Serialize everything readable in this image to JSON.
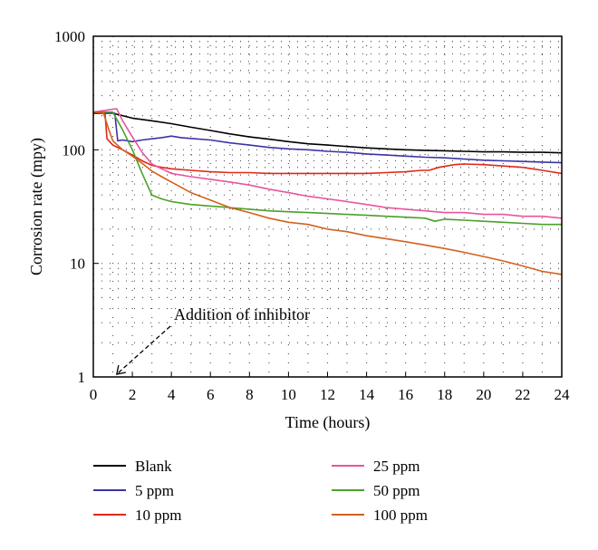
{
  "chart_data": {
    "type": "line",
    "xlabel": "Time (hours)",
    "ylabel": "Corrosion rate (mpy)",
    "xlim": [
      0,
      24
    ],
    "ylim": [
      1,
      1000
    ],
    "yscale": "log",
    "xticks": [
      "0",
      "2",
      "4",
      "6",
      "8",
      "10",
      "12",
      "14",
      "16",
      "18",
      "20",
      "22",
      "24"
    ],
    "yticks": [
      "1",
      "10",
      "100",
      "1000"
    ],
    "grid": "dotted",
    "legend_position": "bottom",
    "annotation": {
      "text": "Addition of inhibitor",
      "x": 1.2,
      "y": 1
    },
    "series": [
      {
        "name": "Blank",
        "color": "#000000",
        "points": [
          [
            0,
            210
          ],
          [
            1,
            210
          ],
          [
            2,
            190
          ],
          [
            3,
            180
          ],
          [
            4,
            170
          ],
          [
            5,
            158
          ],
          [
            6,
            148
          ],
          [
            7,
            138
          ],
          [
            8,
            130
          ],
          [
            9,
            124
          ],
          [
            10,
            118
          ],
          [
            11,
            113
          ],
          [
            12,
            110
          ],
          [
            13,
            107
          ],
          [
            14,
            104
          ],
          [
            15,
            102
          ],
          [
            16,
            100
          ],
          [
            17,
            99
          ],
          [
            18,
            98
          ],
          [
            19,
            97
          ],
          [
            20,
            96
          ],
          [
            21,
            96
          ],
          [
            22,
            95
          ],
          [
            23,
            95
          ],
          [
            24,
            94
          ]
        ]
      },
      {
        "name": "5 ppm",
        "color": "#3a33a6",
        "points": [
          [
            0,
            215
          ],
          [
            1.1,
            210
          ],
          [
            1.25,
            120
          ],
          [
            1.5,
            122
          ],
          [
            2,
            118
          ],
          [
            2.5,
            122
          ],
          [
            3,
            125
          ],
          [
            3.5,
            128
          ],
          [
            4,
            132
          ],
          [
            4.5,
            128
          ],
          [
            5,
            126
          ],
          [
            6,
            122
          ],
          [
            7,
            115
          ],
          [
            8,
            110
          ],
          [
            9,
            105
          ],
          [
            10,
            102
          ],
          [
            11,
            100
          ],
          [
            12,
            97
          ],
          [
            13,
            95
          ],
          [
            14,
            92
          ],
          [
            15,
            90
          ],
          [
            16,
            88
          ],
          [
            17,
            86
          ],
          [
            18,
            85
          ],
          [
            19,
            83
          ],
          [
            20,
            81
          ],
          [
            21,
            80
          ],
          [
            22,
            79
          ],
          [
            23,
            78
          ],
          [
            24,
            77
          ]
        ]
      },
      {
        "name": "10 ppm",
        "color": "#e02818",
        "points": [
          [
            0,
            215
          ],
          [
            0.6,
            210
          ],
          [
            0.7,
            125
          ],
          [
            1,
            110
          ],
          [
            1.5,
            100
          ],
          [
            2,
            90
          ],
          [
            2.5,
            80
          ],
          [
            3,
            73
          ],
          [
            3.5,
            70
          ],
          [
            4,
            68
          ],
          [
            5,
            66
          ],
          [
            6,
            64
          ],
          [
            7,
            63
          ],
          [
            8,
            63
          ],
          [
            9,
            62
          ],
          [
            10,
            62
          ],
          [
            11,
            62
          ],
          [
            12,
            62
          ],
          [
            13,
            62
          ],
          [
            14,
            62
          ],
          [
            15,
            63
          ],
          [
            16,
            64
          ],
          [
            16.8,
            66
          ],
          [
            17.2,
            66
          ],
          [
            17.7,
            70
          ],
          [
            18.5,
            74
          ],
          [
            19,
            75
          ],
          [
            20,
            74
          ],
          [
            21,
            72
          ],
          [
            22,
            70
          ],
          [
            23,
            66
          ],
          [
            24,
            62
          ]
        ]
      },
      {
        "name": "25 ppm",
        "color": "#e8559e",
        "points": [
          [
            0,
            215
          ],
          [
            1.2,
            230
          ],
          [
            1.5,
            180
          ],
          [
            2,
            130
          ],
          [
            2.5,
            95
          ],
          [
            3,
            75
          ],
          [
            3.5,
            68
          ],
          [
            4,
            62
          ],
          [
            5,
            58
          ],
          [
            6,
            55
          ],
          [
            7,
            52
          ],
          [
            8,
            49
          ],
          [
            9,
            45
          ],
          [
            10,
            42
          ],
          [
            11,
            39
          ],
          [
            12,
            37
          ],
          [
            13,
            35
          ],
          [
            14,
            33
          ],
          [
            15,
            31
          ],
          [
            16,
            30
          ],
          [
            17,
            29
          ],
          [
            18,
            28
          ],
          [
            19,
            28
          ],
          [
            20,
            27
          ],
          [
            21,
            27
          ],
          [
            22,
            26
          ],
          [
            23,
            26
          ],
          [
            24,
            25
          ]
        ]
      },
      {
        "name": "50 ppm",
        "color": "#4aa02a",
        "points": [
          [
            0,
            215
          ],
          [
            1,
            215
          ],
          [
            1.5,
            150
          ],
          [
            2,
            100
          ],
          [
            2.5,
            62
          ],
          [
            3,
            40
          ],
          [
            3.5,
            37
          ],
          [
            4,
            35
          ],
          [
            5,
            33
          ],
          [
            6,
            32
          ],
          [
            7,
            31
          ],
          [
            8,
            30
          ],
          [
            9,
            29
          ],
          [
            10,
            28.5
          ],
          [
            11,
            28
          ],
          [
            12,
            27.5
          ],
          [
            13,
            27
          ],
          [
            14,
            26.5
          ],
          [
            15,
            26
          ],
          [
            16,
            25.5
          ],
          [
            17,
            25
          ],
          [
            17.5,
            23.5
          ],
          [
            18,
            24.5
          ],
          [
            19,
            24
          ],
          [
            20,
            23.5
          ],
          [
            21,
            23
          ],
          [
            22,
            22.5
          ],
          [
            23,
            22
          ],
          [
            24,
            22
          ]
        ]
      },
      {
        "name": "100 ppm",
        "color": "#d2611f",
        "points": [
          [
            0,
            215
          ],
          [
            0.5,
            215
          ],
          [
            0.8,
            150
          ],
          [
            1,
            120
          ],
          [
            1.5,
            100
          ],
          [
            2,
            88
          ],
          [
            2.5,
            76
          ],
          [
            3,
            65
          ],
          [
            3.5,
            58
          ],
          [
            4,
            52
          ],
          [
            5,
            42
          ],
          [
            6,
            36
          ],
          [
            7,
            31
          ],
          [
            8,
            28
          ],
          [
            9,
            25
          ],
          [
            10,
            23
          ],
          [
            11,
            22
          ],
          [
            12,
            20
          ],
          [
            13,
            19
          ],
          [
            14,
            17.5
          ],
          [
            15,
            16.5
          ],
          [
            16,
            15.5
          ],
          [
            17,
            14.5
          ],
          [
            18,
            13.5
          ],
          [
            19,
            12.5
          ],
          [
            20,
            11.5
          ],
          [
            21,
            10.5
          ],
          [
            22,
            9.5
          ],
          [
            23,
            8.5
          ],
          [
            24,
            8
          ]
        ]
      }
    ]
  }
}
